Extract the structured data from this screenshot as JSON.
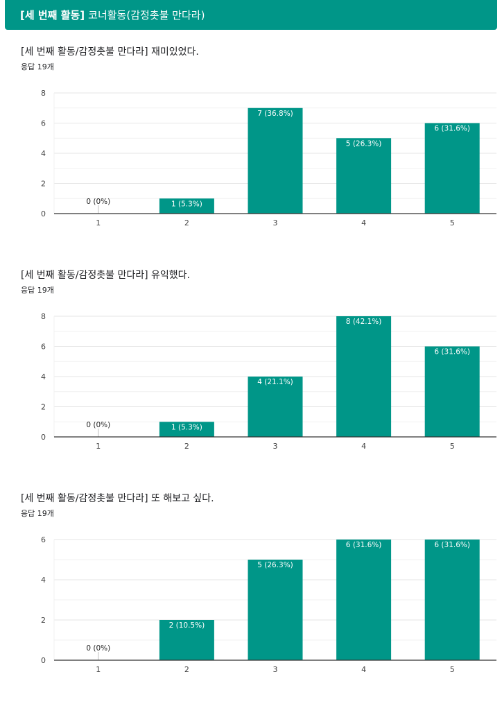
{
  "header": {
    "title_bold": "[세 번째 활동]",
    "title_rest": "코너활동(감정촛불 만다라)"
  },
  "colors": {
    "accent": "#009688",
    "bar": "#009688",
    "grid": "#e6e6e6",
    "axis": "#333333"
  },
  "questions": [
    {
      "title": "[세 번째 활동/감정촛불 만다라] 재미있었다.",
      "responses": "응답 19개"
    },
    {
      "title": "[세 번째 활동/감정촛불 만다라] 유익했다.",
      "responses": "응답 19개"
    },
    {
      "title": "[세 번째 활동/감정촛불 만다라] 또 해보고 싶다.",
      "responses": "응답 19개"
    }
  ],
  "chart_data": [
    {
      "type": "bar",
      "categories": [
        "1",
        "2",
        "3",
        "4",
        "5"
      ],
      "values": [
        0,
        1,
        7,
        5,
        6
      ],
      "data_labels": [
        "0 (0%)",
        "1 (5.3%)",
        "7 (36.8%)",
        "5 (26.3%)",
        "6 (31.6%)"
      ],
      "yticks": [
        0,
        2,
        4,
        6,
        8
      ],
      "ylim": [
        0,
        8
      ],
      "grid": true,
      "title": "",
      "xlabel": "",
      "ylabel": ""
    },
    {
      "type": "bar",
      "categories": [
        "1",
        "2",
        "3",
        "4",
        "5"
      ],
      "values": [
        0,
        1,
        4,
        8,
        6
      ],
      "data_labels": [
        "0 (0%)",
        "1 (5.3%)",
        "4 (21.1%)",
        "8 (42.1%)",
        "6 (31.6%)"
      ],
      "yticks": [
        0,
        2,
        4,
        6,
        8
      ],
      "ylim": [
        0,
        8
      ],
      "grid": true,
      "title": "",
      "xlabel": "",
      "ylabel": ""
    },
    {
      "type": "bar",
      "categories": [
        "1",
        "2",
        "3",
        "4",
        "5"
      ],
      "values": [
        0,
        2,
        5,
        6,
        6
      ],
      "data_labels": [
        "0 (0%)",
        "2 (10.5%)",
        "5 (26.3%)",
        "6 (31.6%)",
        "6 (31.6%)"
      ],
      "yticks": [
        0,
        2,
        4,
        6
      ],
      "ylim": [
        0,
        6
      ],
      "grid": true,
      "title": "",
      "xlabel": "",
      "ylabel": ""
    }
  ]
}
